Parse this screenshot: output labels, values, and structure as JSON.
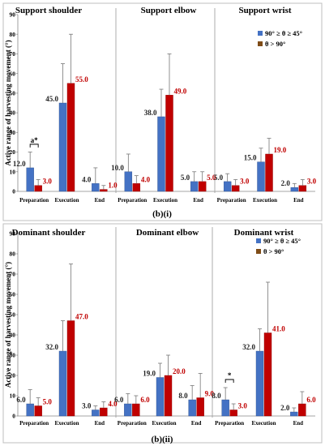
{
  "colors": {
    "s1": "#4472c4",
    "s2": "#c00000",
    "s2_legend": "#7f4c17",
    "err": "#777777"
  },
  "chart_data": [
    {
      "type": "bar",
      "caption": "(b)(i)",
      "ylabel": "Active range of harvesting movement (°)",
      "ylim": [
        0,
        90
      ],
      "yticks": [
        0,
        10,
        20,
        30,
        40,
        50,
        60,
        70,
        80,
        90
      ],
      "legend": {
        "position": "top-right",
        "entries": [
          "90° ≥ θ ≥ 45°",
          "θ > 90°"
        ]
      },
      "panels": [
        {
          "title": "Support  shoulder",
          "categories": [
            "Preparation",
            "Execution",
            "End"
          ],
          "series": [
            {
              "values": [
                12.0,
                45.0,
                4.0
              ],
              "labels": [
                "12.0",
                "45.0",
                "4.0"
              ],
              "error": [
                8,
                20,
                8
              ]
            },
            {
              "values": [
                3.0,
                55.0,
                1.0
              ],
              "labels": [
                "3.0",
                "55.0",
                "1.0"
              ],
              "error": [
                3,
                25,
                2
              ]
            }
          ],
          "significance": [
            {
              "category": 0,
              "label": "a*"
            }
          ]
        },
        {
          "title": "Support  elbow",
          "categories": [
            "Preparation",
            "Execution",
            "End"
          ],
          "series": [
            {
              "values": [
                10.0,
                38.0,
                5.0
              ],
              "labels": [
                "10.0",
                "38.0",
                "5.0"
              ],
              "error": [
                9,
                14,
                5
              ]
            },
            {
              "values": [
                4.0,
                49.0,
                5.0
              ],
              "labels": [
                "4.0",
                "49.0",
                "5.0"
              ],
              "error": [
                4,
                21,
                5
              ]
            }
          ],
          "significance": []
        },
        {
          "title": "Support wrist",
          "categories": [
            "Preparation",
            "Execution",
            "End"
          ],
          "series": [
            {
              "values": [
                5.0,
                15.0,
                2.0
              ],
              "labels": [
                "5.0",
                "15.0",
                "2.0"
              ],
              "error": [
                4,
                7,
                2
              ]
            },
            {
              "values": [
                3.0,
                19.0,
                3.0
              ],
              "labels": [
                "3.0",
                "19.0",
                "3.0"
              ],
              "error": [
                3,
                8,
                3
              ]
            }
          ],
          "significance": []
        }
      ]
    },
    {
      "type": "bar",
      "caption": "(b)(ii)",
      "ylabel": "Active range of harvesting movement (°)",
      "ylim": [
        0,
        90
      ],
      "yticks": [
        0,
        10,
        20,
        30,
        40,
        50,
        60,
        70,
        80,
        90
      ],
      "legend": {
        "position": "top-right",
        "entries": [
          "90° ≥ θ ≥ 45°",
          "θ > 90°"
        ]
      },
      "panels": [
        {
          "title": "Dominant  shoulder",
          "categories": [
            "Preparation",
            "Execution",
            "End"
          ],
          "series": [
            {
              "values": [
                6.0,
                32.0,
                3.0
              ],
              "labels": [
                "6.0",
                "32.0",
                "3.0"
              ],
              "error": [
                7,
                15,
                2
              ]
            },
            {
              "values": [
                5.0,
                47.0,
                4.0
              ],
              "labels": [
                "5.0",
                "47.0",
                "4.0"
              ],
              "error": [
                4,
                28,
                3
              ]
            }
          ],
          "significance": []
        },
        {
          "title": "Dominant  elbow",
          "categories": [
            "Preparation",
            "Execution",
            "End"
          ],
          "series": [
            {
              "values": [
                6.0,
                19.0,
                8.0
              ],
              "labels": [
                "6.0",
                "19.0",
                "8.0"
              ],
              "error": [
                5,
                7,
                7
              ]
            },
            {
              "values": [
                6.0,
                20.0,
                9.0
              ],
              "labels": [
                "6.0",
                "20.0",
                "9.0"
              ],
              "error": [
                4,
                10,
                12
              ]
            }
          ],
          "significance": []
        },
        {
          "title": "Dominant wrist",
          "categories": [
            "Preparation",
            "Execution",
            "End"
          ],
          "series": [
            {
              "values": [
                8.0,
                32.0,
                2.0
              ],
              "labels": [
                "8.0",
                "32.0",
                "2.0"
              ],
              "error": [
                6,
                11,
                2
              ]
            },
            {
              "values": [
                3.0,
                41.0,
                6.0
              ],
              "labels": [
                "3.0",
                "41.0",
                "6.0"
              ],
              "error": [
                3,
                25,
                6
              ]
            }
          ],
          "significance": [
            {
              "category": 0,
              "label": "*"
            }
          ]
        }
      ]
    }
  ]
}
